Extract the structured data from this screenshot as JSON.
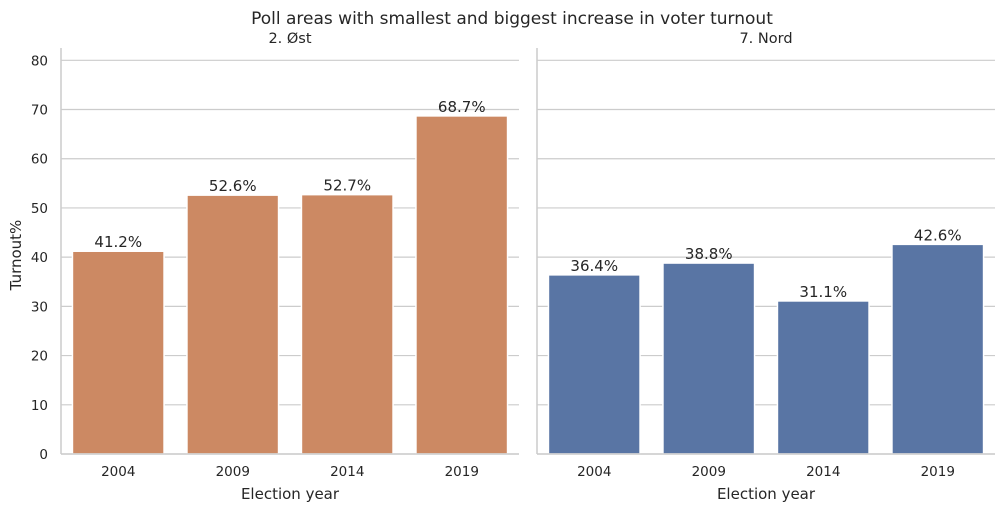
{
  "chart_data": {
    "type": "bar",
    "title": "Poll areas with smallest and biggest increase in voter turnout",
    "ylabel": "Turnout%",
    "xlabel": "Election year",
    "ylim": [
      0,
      82.5
    ],
    "yticks": [
      0,
      10,
      20,
      30,
      40,
      50,
      60,
      70,
      80
    ],
    "grid": true,
    "facets": [
      {
        "title": "2. Øst",
        "color": "#cc8963",
        "categories": [
          "2004",
          "2009",
          "2014",
          "2019"
        ],
        "values": [
          41.2,
          52.6,
          52.7,
          68.7
        ],
        "labels": [
          "41.2%",
          "52.6%",
          "52.7%",
          "68.7%"
        ]
      },
      {
        "title": "7. Nord",
        "color": "#5975a4",
        "categories": [
          "2004",
          "2009",
          "2014",
          "2019"
        ],
        "values": [
          36.4,
          38.8,
          31.1,
          42.6
        ],
        "labels": [
          "36.4%",
          "38.8%",
          "31.1%",
          "42.6%"
        ]
      }
    ]
  }
}
